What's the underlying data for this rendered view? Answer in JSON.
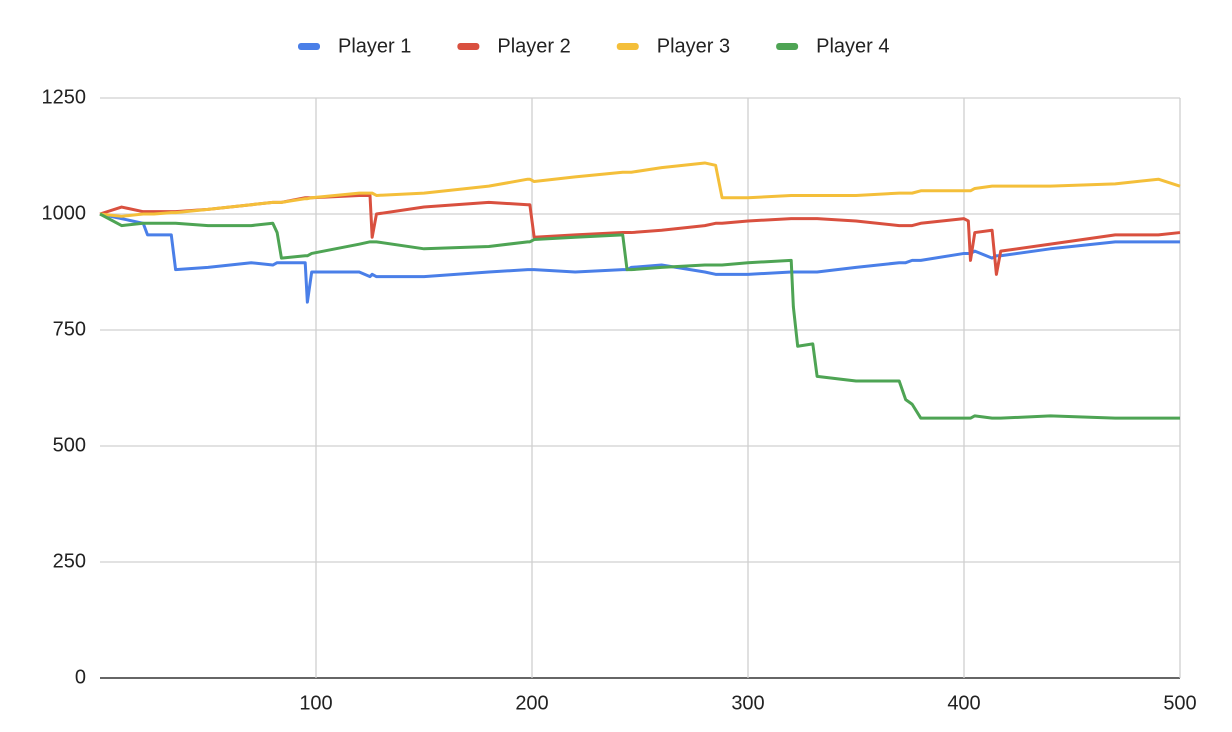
{
  "chart_data": {
    "type": "line",
    "x": [
      0,
      10,
      20,
      22,
      25,
      33,
      35,
      50,
      70,
      80,
      82,
      84,
      95,
      96,
      98,
      120,
      125,
      126,
      128,
      150,
      180,
      198,
      199,
      201,
      220,
      242,
      244,
      246,
      260,
      280,
      285,
      288,
      300,
      320,
      321,
      323,
      330,
      332,
      350,
      370,
      373,
      376,
      380,
      400,
      402,
      403,
      405,
      413,
      415,
      417,
      440,
      470,
      490,
      500
    ],
    "series": [
      {
        "name": "Player 1",
        "color": "#4a7fe8",
        "values": [
          1000,
          990,
          980,
          955,
          955,
          955,
          880,
          885,
          895,
          890,
          895,
          895,
          895,
          810,
          875,
          875,
          865,
          870,
          865,
          865,
          875,
          880,
          880,
          880,
          875,
          880,
          880,
          885,
          890,
          875,
          870,
          870,
          870,
          875,
          875,
          875,
          875,
          875,
          885,
          895,
          895,
          900,
          900,
          915,
          915,
          915,
          920,
          905,
          910,
          910,
          925,
          940,
          940,
          940
        ]
      },
      {
        "name": "Player 2",
        "color": "#d9503f",
        "values": [
          1000,
          1015,
          1005,
          1005,
          1005,
          1005,
          1005,
          1010,
          1020,
          1025,
          1025,
          1025,
          1035,
          1035,
          1035,
          1040,
          1040,
          950,
          1000,
          1015,
          1025,
          1020,
          1020,
          950,
          955,
          960,
          960,
          960,
          965,
          975,
          980,
          980,
          985,
          990,
          990,
          990,
          990,
          990,
          985,
          975,
          975,
          975,
          980,
          990,
          985,
          900,
          960,
          965,
          870,
          920,
          935,
          955,
          955,
          960
        ]
      },
      {
        "name": "Player 3",
        "color": "#f4bf3a",
        "values": [
          1000,
          995,
          1000,
          1000,
          1000,
          1003,
          1003,
          1010,
          1020,
          1025,
          1025,
          1025,
          1033,
          1033,
          1035,
          1045,
          1045,
          1045,
          1040,
          1045,
          1060,
          1075,
          1075,
          1070,
          1080,
          1090,
          1090,
          1090,
          1100,
          1110,
          1105,
          1035,
          1035,
          1040,
          1040,
          1040,
          1040,
          1040,
          1040,
          1045,
          1045,
          1045,
          1050,
          1050,
          1050,
          1050,
          1055,
          1060,
          1060,
          1060,
          1060,
          1065,
          1075,
          1060
        ]
      },
      {
        "name": "Player 4",
        "color": "#4ea454",
        "values": [
          1000,
          975,
          980,
          980,
          980,
          980,
          980,
          975,
          975,
          980,
          960,
          905,
          910,
          910,
          915,
          935,
          940,
          940,
          940,
          925,
          930,
          940,
          940,
          945,
          950,
          955,
          880,
          880,
          885,
          890,
          890,
          890,
          895,
          900,
          800,
          715,
          720,
          650,
          640,
          640,
          600,
          590,
          560,
          560,
          560,
          560,
          565,
          560,
          560,
          560,
          565,
          560,
          560,
          560
        ]
      }
    ],
    "xlim": [
      0,
      500
    ],
    "xticks": [
      100,
      200,
      300,
      400,
      500
    ],
    "ylim": [
      0,
      1250
    ],
    "yticks": [
      0,
      250,
      500,
      750,
      1000,
      1250
    ],
    "grid": true,
    "legend": "top"
  }
}
